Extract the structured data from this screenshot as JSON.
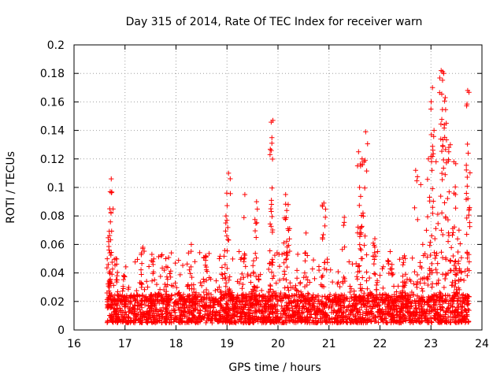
{
  "chart_data": {
    "type": "scatter",
    "title": "Day 315 of 2014, Rate Of TEC Index for receiver warn",
    "xlabel": "GPS time / hours",
    "ylabel": "ROTI / TECUs",
    "xlim": [
      16,
      24
    ],
    "ylim": [
      0,
      0.2
    ],
    "x_ticks": [
      "16",
      "17",
      "18",
      "19",
      "20",
      "21",
      "22",
      "23",
      "24"
    ],
    "y_ticks": [
      "0",
      "0.02",
      "0.04",
      "0.06",
      "0.08",
      "0.1",
      "0.12",
      "0.14",
      "0.16",
      "0.18",
      "0.2"
    ],
    "grid": true,
    "marker": "+",
    "series": [
      {
        "name": "ROTI",
        "color": "#ff0000",
        "x_range": [
          16.65,
          23.75
        ],
        "baseline_min": 0.005,
        "baseline_max": 0.025,
        "peaks": [
          {
            "x": 16.73,
            "y": 0.106
          },
          {
            "x": 16.71,
            "y": 0.097
          },
          {
            "x": 16.7,
            "y": 0.085
          },
          {
            "x": 16.68,
            "y": 0.062
          },
          {
            "x": 16.82,
            "y": 0.05
          },
          {
            "x": 17.35,
            "y": 0.058
          },
          {
            "x": 17.8,
            "y": 0.05
          },
          {
            "x": 18.3,
            "y": 0.06
          },
          {
            "x": 18.58,
            "y": 0.052
          },
          {
            "x": 18.85,
            "y": 0.05
          },
          {
            "x": 19.03,
            "y": 0.11
          },
          {
            "x": 18.98,
            "y": 0.08
          },
          {
            "x": 19.35,
            "y": 0.095
          },
          {
            "x": 19.58,
            "y": 0.09
          },
          {
            "x": 19.9,
            "y": 0.147
          },
          {
            "x": 19.88,
            "y": 0.131
          },
          {
            "x": 19.86,
            "y": 0.085
          },
          {
            "x": 20.15,
            "y": 0.095
          },
          {
            "x": 20.2,
            "y": 0.088
          },
          {
            "x": 20.55,
            "y": 0.068
          },
          {
            "x": 20.9,
            "y": 0.089
          },
          {
            "x": 21.3,
            "y": 0.079
          },
          {
            "x": 21.58,
            "y": 0.125
          },
          {
            "x": 21.62,
            "y": 0.115
          },
          {
            "x": 21.6,
            "y": 0.1
          },
          {
            "x": 21.72,
            "y": 0.139
          },
          {
            "x": 21.65,
            "y": 0.12
          },
          {
            "x": 21.9,
            "y": 0.064
          },
          {
            "x": 22.2,
            "y": 0.055
          },
          {
            "x": 22.48,
            "y": 0.052
          },
          {
            "x": 22.7,
            "y": 0.112
          },
          {
            "x": 22.8,
            "y": 0.102
          },
          {
            "x": 22.95,
            "y": 0.12
          },
          {
            "x": 23.0,
            "y": 0.155
          },
          {
            "x": 23.03,
            "y": 0.17
          },
          {
            "x": 23.06,
            "y": 0.14
          },
          {
            "x": 23.1,
            "y": 0.118
          },
          {
            "x": 23.2,
            "y": 0.182
          },
          {
            "x": 23.25,
            "y": 0.18
          },
          {
            "x": 23.28,
            "y": 0.163
          },
          {
            "x": 23.3,
            "y": 0.145
          },
          {
            "x": 23.38,
            "y": 0.13
          },
          {
            "x": 23.45,
            "y": 0.118
          },
          {
            "x": 23.48,
            "y": 0.095
          },
          {
            "x": 23.55,
            "y": 0.07
          },
          {
            "x": 23.72,
            "y": 0.168
          },
          {
            "x": 23.73,
            "y": 0.124
          }
        ]
      }
    ]
  }
}
